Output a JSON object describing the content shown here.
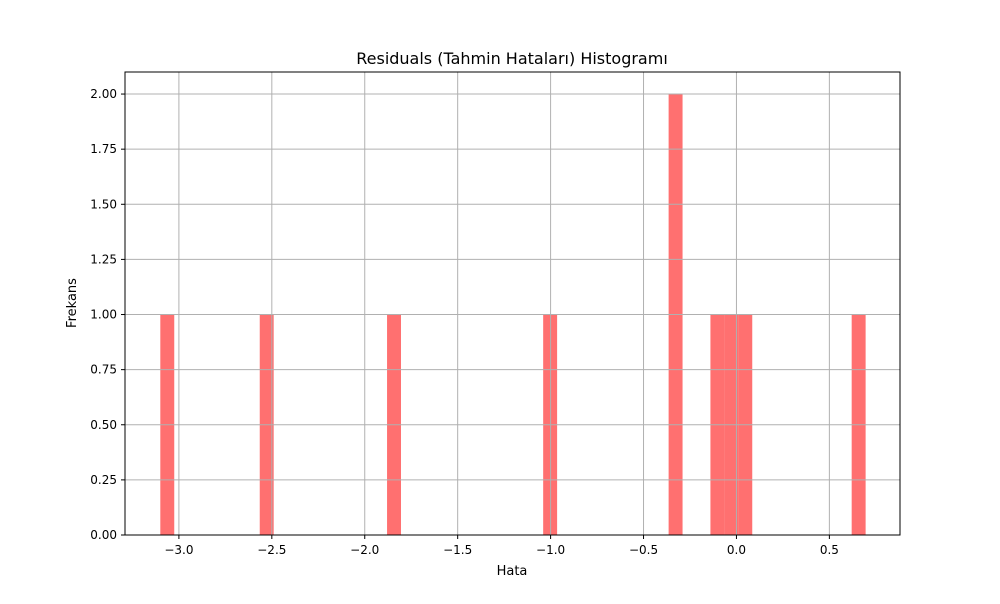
{
  "chart_data": {
    "type": "bar",
    "title": "Residuals (Tahmin Hataları) Histogramı",
    "xlabel": "Hata",
    "ylabel": "Frekans",
    "xlim": [
      -3.29,
      0.88
    ],
    "ylim": [
      0,
      2.1
    ],
    "grid": true,
    "bar_color": "#ff4040",
    "bar_opacity": 0.75,
    "grid_color": "#b0b0b0",
    "xticks": [
      {
        "value": -3.0,
        "label": "−3.0"
      },
      {
        "value": -2.5,
        "label": "−2.5"
      },
      {
        "value": -2.0,
        "label": "−2.0"
      },
      {
        "value": -1.5,
        "label": "−1.5"
      },
      {
        "value": -1.0,
        "label": "−1.0"
      },
      {
        "value": -0.5,
        "label": "−0.5"
      },
      {
        "value": 0.0,
        "label": "0.0"
      },
      {
        "value": 0.5,
        "label": "0.5"
      }
    ],
    "yticks": [
      {
        "value": 0.0,
        "label": "0.00"
      },
      {
        "value": 0.25,
        "label": "0.25"
      },
      {
        "value": 0.5,
        "label": "0.50"
      },
      {
        "value": 0.75,
        "label": "0.75"
      },
      {
        "value": 1.0,
        "label": "1.00"
      },
      {
        "value": 1.25,
        "label": "1.25"
      },
      {
        "value": 1.5,
        "label": "1.50"
      },
      {
        "value": 1.75,
        "label": "1.75"
      },
      {
        "value": 2.0,
        "label": "2.00"
      }
    ],
    "bins": [
      {
        "x0": -3.1,
        "x1": -3.025,
        "count": 1
      },
      {
        "x0": -2.565,
        "x1": -2.49,
        "count": 1
      },
      {
        "x0": -1.88,
        "x1": -1.805,
        "count": 1
      },
      {
        "x0": -1.04,
        "x1": -0.965,
        "count": 1
      },
      {
        "x0": -0.365,
        "x1": -0.29,
        "count": 2
      },
      {
        "x0": -0.14,
        "x1": -0.065,
        "count": 1
      },
      {
        "x0": -0.065,
        "x1": 0.01,
        "count": 1
      },
      {
        "x0": 0.01,
        "x1": 0.085,
        "count": 1
      },
      {
        "x0": 0.62,
        "x1": 0.695,
        "count": 1
      }
    ]
  }
}
